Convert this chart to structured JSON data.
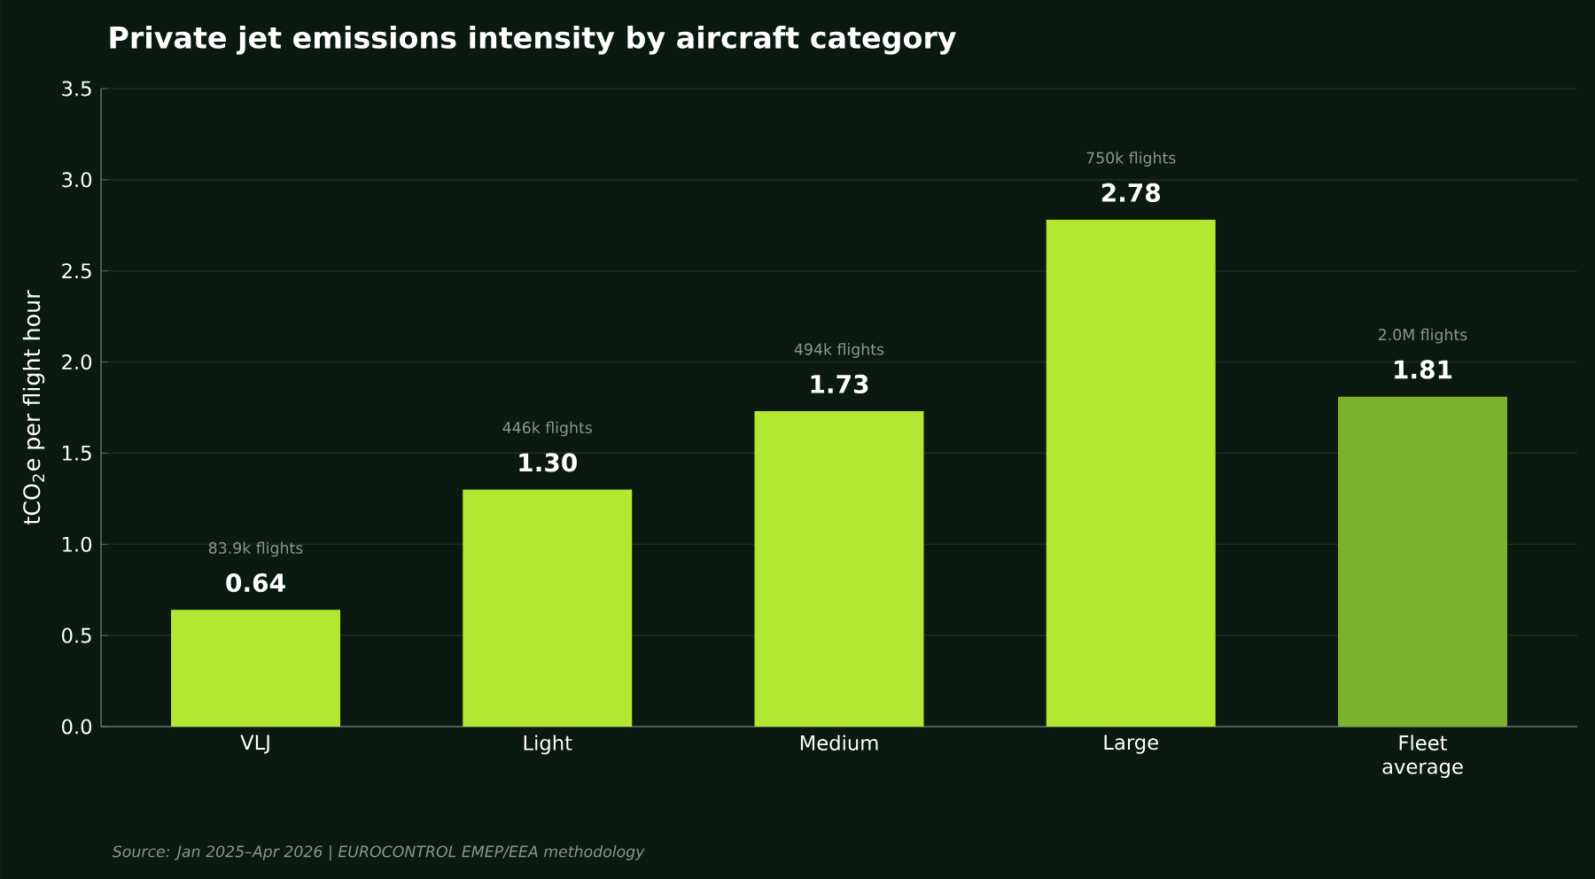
{
  "chart_data": {
    "type": "bar",
    "title": "Private jet emissions intensity by aircraft category",
    "ylabel": "tCO$_{2}$e per flight hour",
    "categories": [
      "VLJ",
      "Light",
      "Medium",
      "Large",
      "Fleet average"
    ],
    "values": [
      0.64,
      1.3,
      1.73,
      2.78,
      1.81
    ],
    "value_labels": [
      "0.64",
      "1.30",
      "1.73",
      "2.78",
      "1.81"
    ],
    "colors": [
      "#b2e832",
      "#b2e832",
      "#b2e832",
      "#b2e832",
      "#7fb22c"
    ],
    "ylim": [
      0,
      3.5
    ],
    "yticks": [
      {
        "value": 0,
        "label": "0.0"
      },
      0.5,
      {
        "value": 1,
        "label": "1.0"
      },
      1.5,
      {
        "value": 2,
        "label": "2.0"
      },
      2.5,
      {
        "value": 3,
        "label": "3.0"
      },
      3.5
    ],
    "grid": "y",
    "annotations": [
      "83.9k flights",
      "446k flights",
      "494k flights",
      "750k flights",
      "2.0M flights",
      "Source: Jan 2025–Apr 2026  |  EUROCONTROL EMEP/EEA methodology"
    ]
  }
}
